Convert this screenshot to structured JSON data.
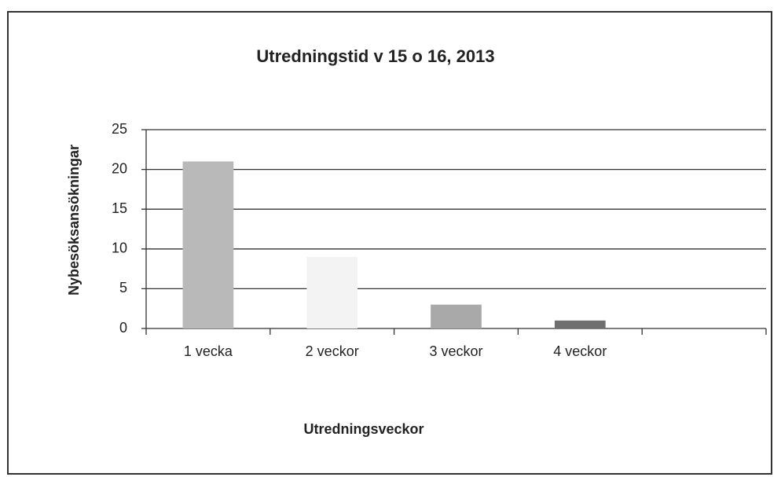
{
  "chart_data": {
    "type": "bar",
    "title": "Utredningstid v 15 o 16, 2013",
    "x_label": "Utredningsveckor",
    "y_label": "Nybesöksansökningar",
    "categories": [
      "1 vecka",
      "2 veckor",
      "3 veckor",
      "4 veckor",
      null
    ],
    "values": [
      21,
      9,
      3,
      1,
      null
    ],
    "colors": [
      "#b9b9b9",
      "#f3f3f3",
      "#a9a9a9",
      "#6f6f6f",
      null
    ],
    "ylim": [
      0,
      25
    ],
    "yticks": [
      0,
      5,
      10,
      15,
      20,
      25
    ],
    "grid": true
  }
}
